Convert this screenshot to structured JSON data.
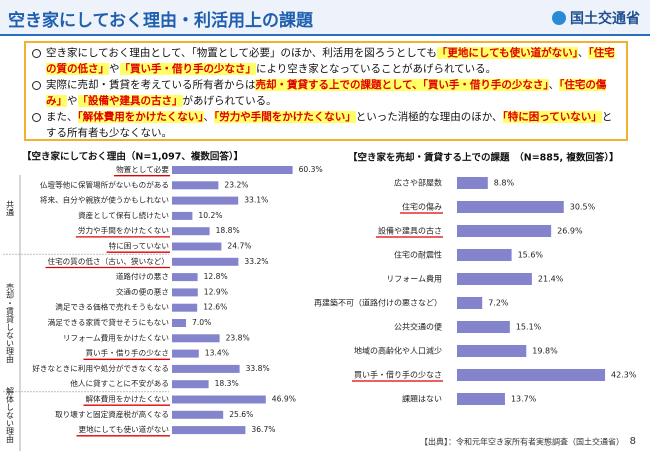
{
  "header": {
    "title": "空き家にしておく理由・利活用上の課題",
    "logo": "国土交通省"
  },
  "bullets": [
    [
      "空き家にしておく理由として、「物置として必要」のほか、利活用を図ろうとしても",
      "「更地にしても使い道がない」",
      "、",
      "「住宅の質の低さ」",
      "や",
      "「買い手・借り手の少なさ」",
      "により空き家となっていることがあげられている。"
    ],
    [
      "実際に売却・賃貸を考えている所有者からは",
      "売却・賃貸する上での課題として、「買い手・借り手の少なさ」",
      "、",
      "「住宅の傷み」",
      "や",
      "「設備や建具の古さ」",
      "があげられている。"
    ],
    [
      "また、",
      "「解体費用をかけたくない」",
      "、",
      "「労力や手間をかけたくない」",
      "といった消極的な理由のほか、",
      "「特に困っていない」",
      "とする所有者も少なくない。"
    ]
  ],
  "chart_data": [
    {
      "type": "bar",
      "orientation": "horizontal",
      "title": "【空き家にしておく理由（N=1,097、複数回答）】",
      "group_labels": [
        "共通",
        "売却・賃貸しない理由",
        "解体しない理由"
      ],
      "categories": [
        "物置として必要",
        "仏壇等他に保管場所がないものがある",
        "将来、自分や親族が使うかもしれない",
        "資産として保有し続けたい",
        "労力や手間をかけたくない",
        "特に困っていない",
        "住宅の質の低さ（古い、狭いなど）",
        "道路付けの悪さ",
        "交通の便の悪さ",
        "満足できる価格で売れそうもない",
        "満足できる家賃で貸せそうにもない",
        "リフォーム費用をかけたくない",
        "買い手・借り手の少なさ",
        "好きなときに利用や処分ができなくなる",
        "他人に貸すことに不安がある",
        "解体費用をかけたくない",
        "取り壊すと固定資産税が高くなる",
        "更地にしても使い道がない"
      ],
      "values": [
        60.3,
        23.2,
        33.1,
        10.2,
        18.8,
        24.7,
        33.2,
        12.8,
        12.9,
        12.6,
        7.0,
        23.8,
        13.4,
        33.8,
        18.3,
        46.9,
        25.6,
        36.7
      ],
      "value_labels": [
        "60.3%",
        "23.2%",
        "33.1%",
        "10.2%",
        "18.8%",
        "24.7%",
        "33.2%",
        "12.8%",
        "12.9%",
        "12.6%",
        "7.0%",
        "23.8%",
        "13.4%",
        "33.8%",
        "18.3%",
        "46.9%",
        "25.6%",
        "36.7%"
      ],
      "highlighted": [
        true,
        false,
        false,
        false,
        true,
        true,
        true,
        false,
        false,
        false,
        false,
        false,
        true,
        false,
        false,
        true,
        false,
        true
      ],
      "color": "#8484cc"
    },
    {
      "type": "bar",
      "orientation": "horizontal",
      "title": "【空き家を売却・賃貸する上での課題　（N=885, 複数回答）】",
      "categories": [
        "広さや部屋数",
        "住宅の傷み",
        "設備や建具の古さ",
        "住宅の耐震性",
        "リフォーム費用",
        "再建築不可（道路付けの悪さなど）",
        "公共交通の便",
        "地域の高齢化や人口減少",
        "買い手・借り手の少なさ",
        "課題はない"
      ],
      "values": [
        8.8,
        30.5,
        26.9,
        15.6,
        21.4,
        7.2,
        15.1,
        19.8,
        42.3,
        13.7
      ],
      "value_labels": [
        "8.8%",
        "30.5%",
        "26.9%",
        "15.6%",
        "21.4%",
        "7.2%",
        "15.1%",
        "19.8%",
        "42.3%",
        "13.7%"
      ],
      "highlighted": [
        false,
        true,
        true,
        false,
        false,
        false,
        false,
        false,
        true,
        false
      ],
      "color": "#8484cc"
    }
  ],
  "source": "【出典】：令和元年空き家所有者実態調査（国土交通省）",
  "page_number": "8"
}
